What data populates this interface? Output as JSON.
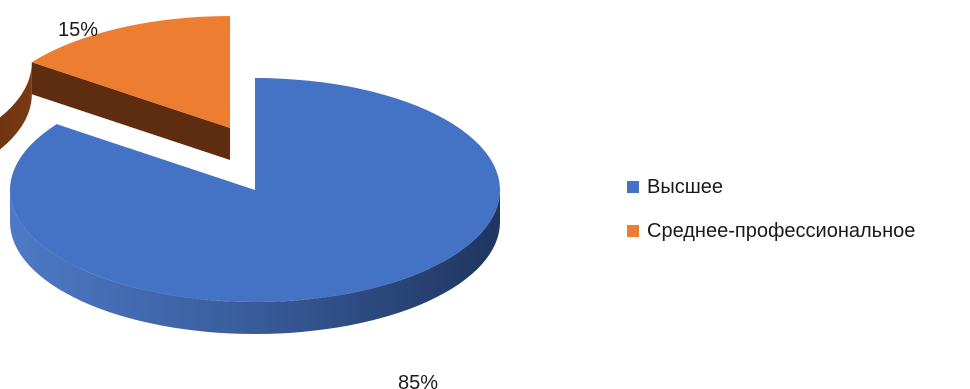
{
  "chart_data": {
    "type": "pie",
    "title": "",
    "three_d": true,
    "exploded": true,
    "legend_position": "right",
    "categories": [
      "Высшее",
      "Среднее-профессиональное"
    ],
    "values": [
      85,
      15
    ],
    "data_labels": [
      "85%",
      "15%"
    ],
    "colors": [
      "#4472c4",
      "#ed7d31"
    ]
  }
}
